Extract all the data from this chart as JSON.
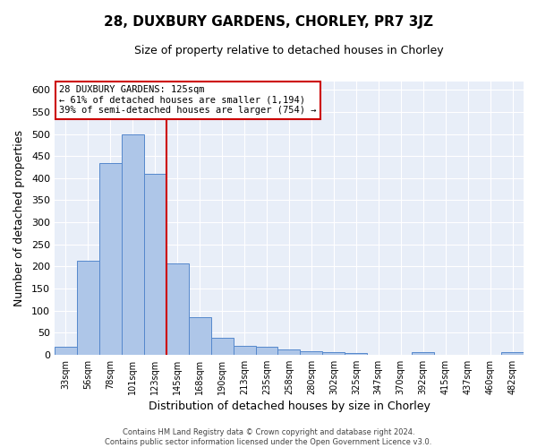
{
  "title": "28, DUXBURY GARDENS, CHORLEY, PR7 3JZ",
  "subtitle": "Size of property relative to detached houses in Chorley",
  "xlabel": "Distribution of detached houses by size in Chorley",
  "ylabel": "Number of detached properties",
  "bar_labels": [
    "33sqm",
    "56sqm",
    "78sqm",
    "101sqm",
    "123sqm",
    "145sqm",
    "168sqm",
    "190sqm",
    "213sqm",
    "235sqm",
    "258sqm",
    "280sqm",
    "302sqm",
    "325sqm",
    "347sqm",
    "370sqm",
    "392sqm",
    "415sqm",
    "437sqm",
    "460sqm",
    "482sqm"
  ],
  "bar_values": [
    18,
    212,
    435,
    500,
    410,
    207,
    85,
    38,
    20,
    18,
    12,
    7,
    5,
    3,
    0,
    0,
    5,
    0,
    0,
    0,
    5
  ],
  "bar_color": "#aec6e8",
  "bar_edge_color": "#5588cc",
  "vline_x_index": 4,
  "vline_color": "#cc0000",
  "annotation_line1": "28 DUXBURY GARDENS: 125sqm",
  "annotation_line2": "← 61% of detached houses are smaller (1,194)",
  "annotation_line3": "39% of semi-detached houses are larger (754) →",
  "annotation_box_color": "#ffffff",
  "annotation_box_edge": "#cc0000",
  "ylim": [
    0,
    620
  ],
  "yticks": [
    0,
    50,
    100,
    150,
    200,
    250,
    300,
    350,
    400,
    450,
    500,
    550,
    600
  ],
  "footer_line1": "Contains HM Land Registry data © Crown copyright and database right 2024.",
  "footer_line2": "Contains public sector information licensed under the Open Government Licence v3.0.",
  "bg_color": "#e8eef8",
  "fig_bg_color": "#ffffff",
  "title_fontsize": 11,
  "subtitle_fontsize": 9,
  "xlabel_fontsize": 9,
  "ylabel_fontsize": 9,
  "tick_fontsize": 8,
  "xtick_fontsize": 7
}
